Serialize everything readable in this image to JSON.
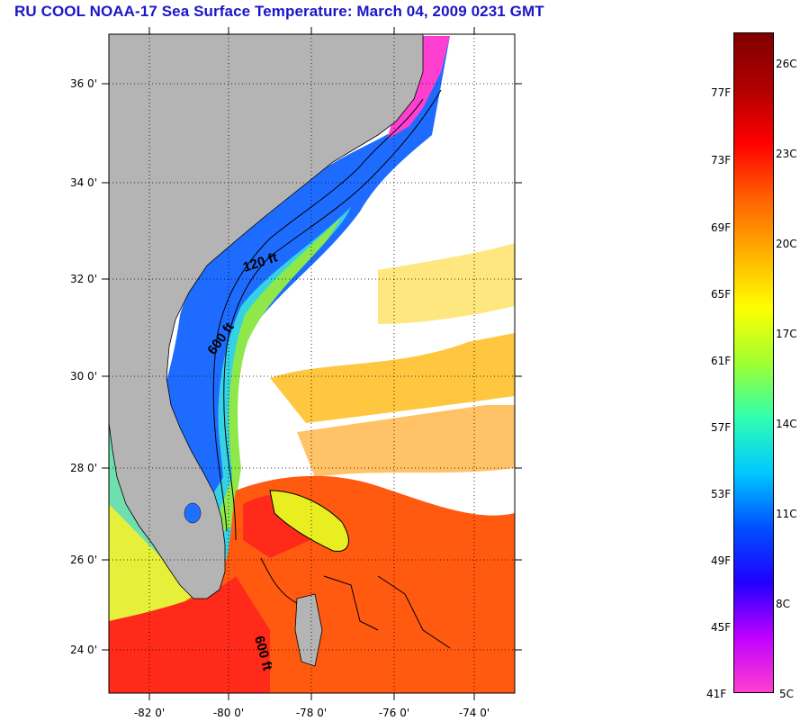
{
  "title": "RU COOL  NOAA-17  Sea Surface Temperature:  March 04, 2009 0231 GMT",
  "map": {
    "lat_labels": [
      "36 0'",
      "34 0'",
      "32 0'",
      "30 0'",
      "28 0'",
      "26 0'",
      "24 0'"
    ],
    "lon_labels": [
      "-82 0'",
      "-80 0'",
      "-78 0'",
      "-76 0'",
      "-74 0'"
    ],
    "contour_labels": [
      "120 ft",
      "600 ft",
      "600 ft"
    ],
    "colors": {
      "land": "#b4b4b4",
      "ocean_cloud": "#ffffff"
    }
  },
  "colorbar": {
    "fahrenheit": [
      "77F",
      "73F",
      "69F",
      "65F",
      "61F",
      "57F",
      "53F",
      "49F",
      "45F",
      "41F"
    ],
    "celsius": [
      "26C",
      "23C",
      "20C",
      "17C",
      "14C",
      "11C",
      "8C",
      "5C"
    ],
    "colors": [
      "#ff3fcf",
      "#c000ff",
      "#2000ff",
      "#0050ff",
      "#00c8ff",
      "#30ffb0",
      "#a0ff30",
      "#ffff00",
      "#ffb000",
      "#ff6000",
      "#ff0000",
      "#b00000",
      "#800000"
    ]
  }
}
